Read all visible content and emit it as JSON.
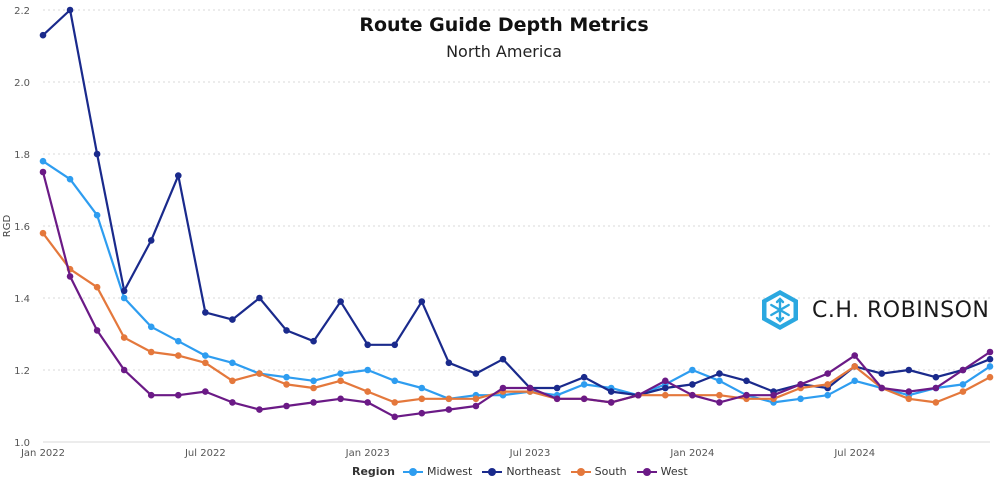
{
  "chart_data": {
    "type": "line",
    "title": "Route Guide Depth Metrics",
    "subtitle": "North America",
    "ylabel": "RGD",
    "xlabel": "",
    "ylim": [
      1.0,
      2.2
    ],
    "y_ticks": [
      "1.0",
      "1.2",
      "1.4",
      "1.6",
      "1.8",
      "2.0",
      "2.2"
    ],
    "x": [
      "2022-01",
      "2022-02",
      "2022-03",
      "2022-04",
      "2022-05",
      "2022-06",
      "2022-07",
      "2022-08",
      "2022-09",
      "2022-10",
      "2022-11",
      "2022-12",
      "2023-01",
      "2023-02",
      "2023-03",
      "2023-04",
      "2023-05",
      "2023-06",
      "2023-07",
      "2023-08",
      "2023-09",
      "2023-10",
      "2023-11",
      "2023-12",
      "2024-01",
      "2024-02",
      "2024-03",
      "2024-04",
      "2024-05",
      "2024-06",
      "2024-07",
      "2024-08",
      "2024-09",
      "2024-10",
      "2024-11",
      "2024-12"
    ],
    "x_tick_labels": [
      {
        "x": "2022-01",
        "label": "Jan 2022"
      },
      {
        "x": "2022-07",
        "label": "Jul 2022"
      },
      {
        "x": "2023-01",
        "label": "Jan 2023"
      },
      {
        "x": "2023-07",
        "label": "Jul 2023"
      },
      {
        "x": "2024-01",
        "label": "Jan 2024"
      },
      {
        "x": "2024-07",
        "label": "Jul 2024"
      }
    ],
    "legend_title": "Region",
    "legend_position": "bottom",
    "grid": true,
    "series": [
      {
        "name": "Midwest",
        "color": "#2e9df0",
        "values": [
          1.78,
          1.73,
          1.63,
          1.4,
          1.32,
          1.28,
          1.24,
          1.22,
          1.19,
          1.18,
          1.17,
          1.19,
          1.2,
          1.17,
          1.15,
          1.12,
          1.13,
          1.13,
          1.14,
          1.13,
          1.16,
          1.15,
          1.13,
          1.16,
          1.2,
          1.17,
          1.13,
          1.11,
          1.12,
          1.13,
          1.17,
          1.15,
          1.13,
          1.15,
          1.16,
          1.21
        ]
      },
      {
        "name": "Northeast",
        "color": "#1a2a8c",
        "values": [
          2.13,
          2.2,
          1.8,
          1.42,
          1.56,
          1.74,
          1.36,
          1.34,
          1.4,
          1.31,
          1.28,
          1.39,
          1.27,
          1.27,
          1.39,
          1.22,
          1.19,
          1.23,
          1.15,
          1.15,
          1.18,
          1.14,
          1.13,
          1.15,
          1.16,
          1.19,
          1.17,
          1.14,
          1.16,
          1.15,
          1.21,
          1.19,
          1.2,
          1.18,
          1.2,
          1.23
        ]
      },
      {
        "name": "South",
        "color": "#e4783c",
        "values": [
          1.58,
          1.48,
          1.43,
          1.29,
          1.25,
          1.24,
          1.22,
          1.17,
          1.19,
          1.16,
          1.15,
          1.17,
          1.14,
          1.11,
          1.12,
          1.12,
          1.12,
          1.14,
          1.14,
          1.12,
          1.12,
          1.11,
          1.13,
          1.13,
          1.13,
          1.13,
          1.12,
          1.12,
          1.15,
          1.16,
          1.21,
          1.15,
          1.12,
          1.11,
          1.14,
          1.18
        ]
      },
      {
        "name": "West",
        "color": "#6b1a86",
        "values": [
          1.75,
          1.46,
          1.31,
          1.2,
          1.13,
          1.13,
          1.14,
          1.11,
          1.09,
          1.1,
          1.11,
          1.12,
          1.11,
          1.07,
          1.08,
          1.09,
          1.1,
          1.15,
          1.15,
          1.12,
          1.12,
          1.11,
          1.13,
          1.17,
          1.13,
          1.11,
          1.13,
          1.13,
          1.16,
          1.19,
          1.24,
          1.15,
          1.14,
          1.15,
          1.2,
          1.25
        ]
      }
    ]
  },
  "logo": {
    "text": "C.H. ROBINSON",
    "color": "#2ba8e0"
  }
}
